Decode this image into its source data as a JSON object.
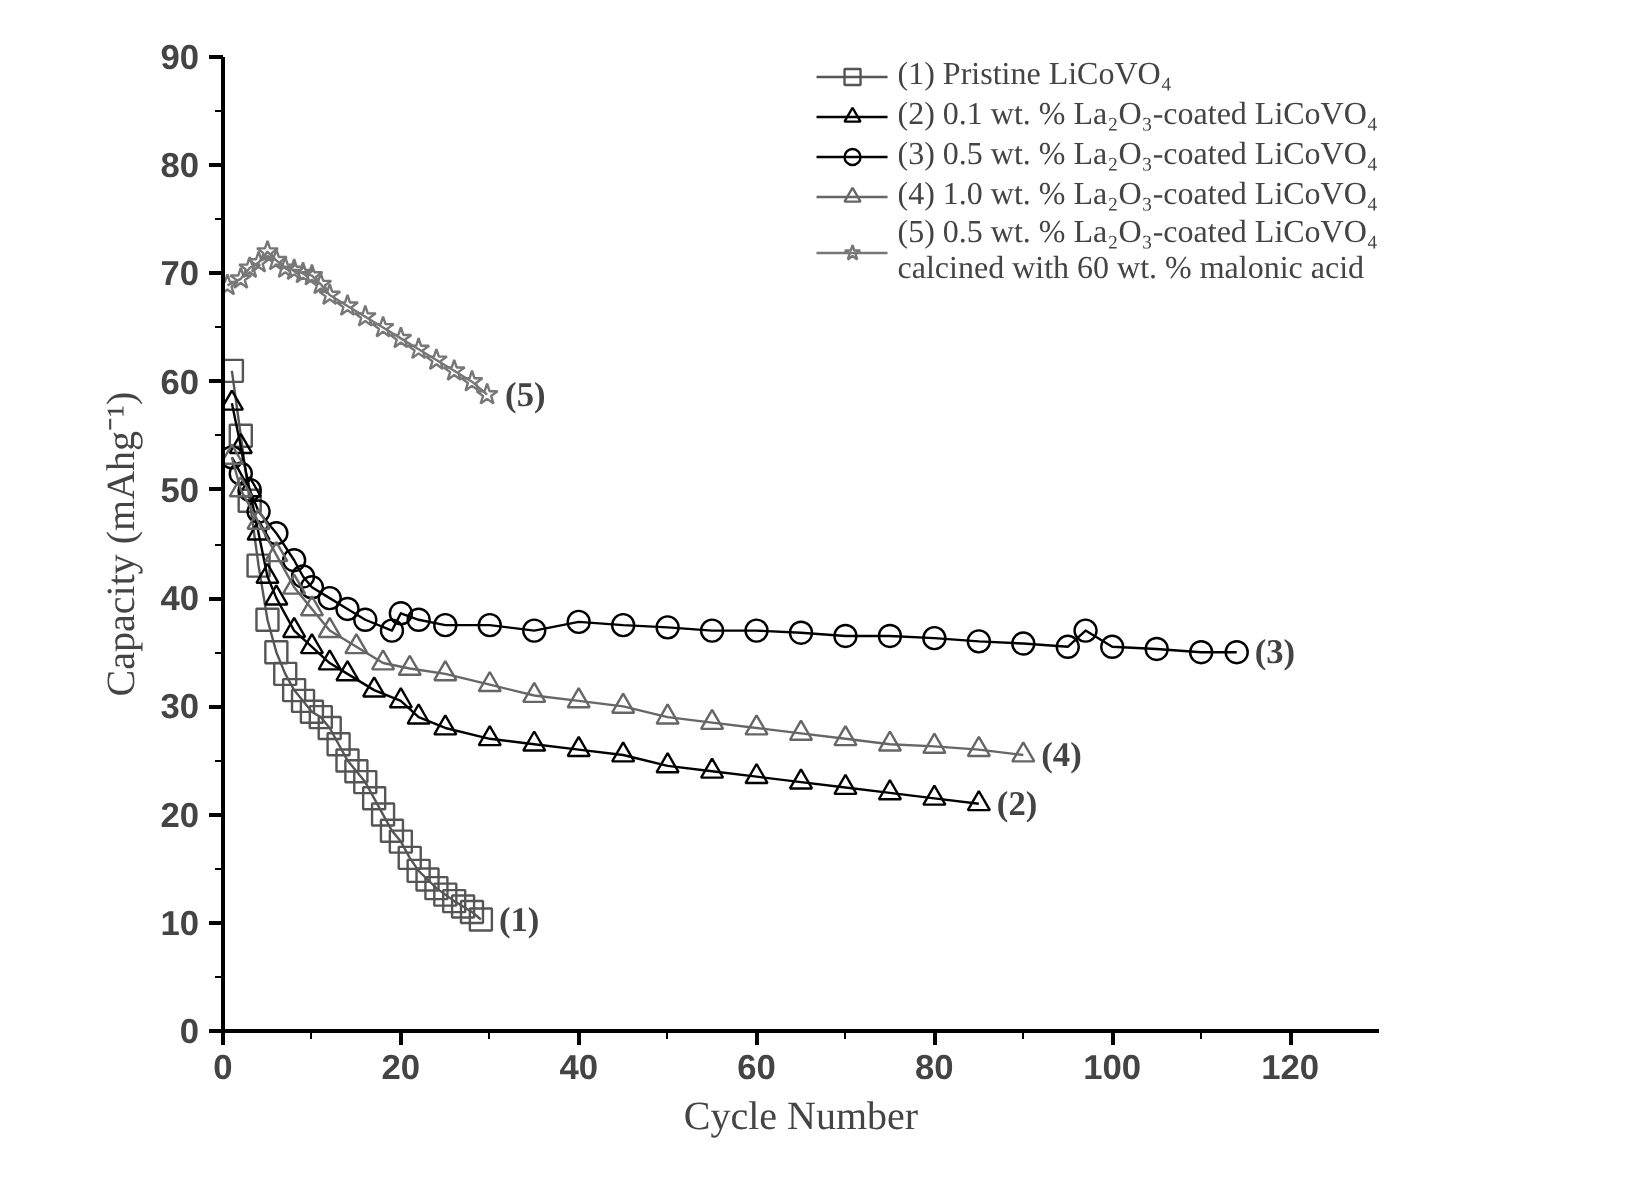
{
  "chart_data": {
    "type": "line",
    "xlabel": "Cycle Number",
    "ylabel": "Capacity (mAhg⁻¹)",
    "xlim": [
      0,
      130
    ],
    "ylim": [
      0,
      90
    ],
    "xticks": [
      0,
      20,
      40,
      60,
      80,
      100,
      120
    ],
    "yticks": [
      0,
      10,
      20,
      30,
      40,
      50,
      60,
      70,
      80,
      90
    ],
    "legend": "top right",
    "series": [
      {
        "name": "(1) Pristine LiCoVO₄",
        "color": "#555555",
        "marker": "square",
        "x": [
          1,
          2,
          3,
          4,
          5,
          6,
          7,
          8,
          9,
          10,
          11,
          12,
          13,
          14,
          15,
          16,
          17,
          18,
          19,
          20,
          21,
          22,
          23,
          24,
          25,
          26,
          27,
          28,
          29
        ],
        "values": [
          61,
          55,
          49,
          43,
          38,
          35,
          33,
          31.5,
          30.5,
          29.5,
          29,
          28,
          26.5,
          25,
          24,
          23,
          21.5,
          20,
          18.5,
          17.5,
          16,
          14.8,
          14,
          13.2,
          12.6,
          12,
          11.5,
          11,
          10.3
        ]
      },
      {
        "name": "(2) 0.1 wt. % La₂O₃-coated LiCoVO₄",
        "color": "#000000",
        "marker": "triangle",
        "x": [
          1,
          2,
          3,
          4,
          5,
          6,
          8,
          10,
          12,
          14,
          17,
          20,
          22,
          25,
          30,
          35,
          40,
          45,
          50,
          55,
          60,
          65,
          70,
          75,
          80,
          85
        ],
        "values": [
          58,
          54,
          50,
          46,
          42,
          40,
          37,
          35.5,
          34,
          33,
          31.5,
          30.5,
          29,
          28,
          27,
          26.5,
          26,
          25.5,
          24.5,
          24,
          23.5,
          23,
          22.5,
          22,
          21.5,
          21
        ]
      },
      {
        "name": "(3) 0.5 wt. % La₂O₃-coated LiCoVO₄",
        "color": "#000000",
        "marker": "circle",
        "x": [
          1,
          2,
          3,
          4,
          6,
          8,
          9,
          10,
          12,
          14,
          16,
          19,
          20,
          22,
          25,
          30,
          35,
          40,
          45,
          50,
          55,
          60,
          65,
          70,
          75,
          80,
          85,
          90,
          95,
          97,
          100,
          105,
          110,
          114
        ],
        "values": [
          53,
          51.5,
          50,
          48,
          46,
          43.5,
          42,
          41,
          40,
          39,
          38,
          37,
          38.6,
          38,
          37.5,
          37.5,
          37,
          37.8,
          37.5,
          37.3,
          37,
          37,
          36.8,
          36.5,
          36.5,
          36.3,
          36,
          35.8,
          35.5,
          37,
          35.5,
          35.3,
          35,
          35
        ]
      },
      {
        "name": "(4) 1.0 wt. % La₂O₃-coated LiCoVO₄",
        "color": "#666666",
        "marker": "triangle",
        "x": [
          1,
          2,
          4,
          6,
          8,
          10,
          12,
          15,
          18,
          21,
          25,
          30,
          35,
          40,
          45,
          50,
          55,
          60,
          65,
          70,
          75,
          80,
          85,
          90
        ],
        "values": [
          53,
          50,
          47,
          44,
          41,
          39,
          37,
          35.5,
          34,
          33.5,
          33,
          32,
          31,
          30.5,
          30,
          29,
          28.5,
          28,
          27.5,
          27,
          26.5,
          26.3,
          26,
          25.5
        ]
      },
      {
        "name": "(5) 0.5 wt. % La₂O₃-coated LiCoVO₄\ncalcined with 60 wt. % malonic acid",
        "color": "#777777",
        "marker": "star",
        "x": [
          0.5,
          2,
          3,
          4,
          5,
          6,
          7,
          8,
          9,
          10,
          11,
          12,
          14,
          16,
          18,
          20,
          22,
          24,
          26,
          28,
          29.7
        ],
        "values": [
          68.9,
          69.5,
          70.5,
          71,
          72,
          71.2,
          70.5,
          70.3,
          70,
          69.8,
          69,
          68,
          67,
          66,
          65,
          64,
          63,
          62,
          61,
          60,
          58.8
        ]
      }
    ],
    "annotations": [
      {
        "text": "(1)",
        "x": 29,
        "y": 10.3
      },
      {
        "text": "(2)",
        "x": 85,
        "y": 21
      },
      {
        "text": "(3)",
        "x": 114,
        "y": 35
      },
      {
        "text": "(4)",
        "x": 90,
        "y": 25.5
      },
      {
        "text": "(5)",
        "x": 29.7,
        "y": 58.8
      }
    ]
  }
}
